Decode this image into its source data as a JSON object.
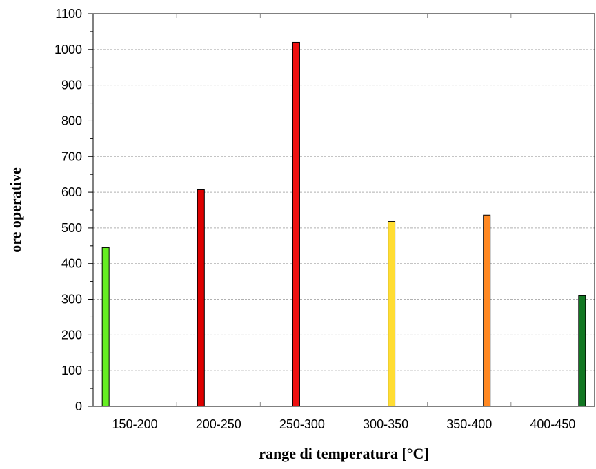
{
  "chart_data": {
    "type": "bar",
    "categories": [
      "150-200",
      "200-250",
      "250-300",
      "300-350",
      "350-400",
      "400-450"
    ],
    "values": [
      445,
      607,
      1020,
      518,
      536,
      310
    ],
    "colors": [
      "#66ee22",
      "#dd0000",
      "#ee1111",
      "#ffdd33",
      "#ff8822",
      "#117722"
    ],
    "title": "",
    "xlabel": "range di temperatura [°C]",
    "ylabel": "ore operative",
    "ylim": [
      0,
      1100
    ],
    "yticks": [
      0,
      100,
      200,
      300,
      400,
      500,
      600,
      700,
      800,
      900,
      1000,
      1100
    ],
    "grid": true,
    "legend": "none"
  }
}
